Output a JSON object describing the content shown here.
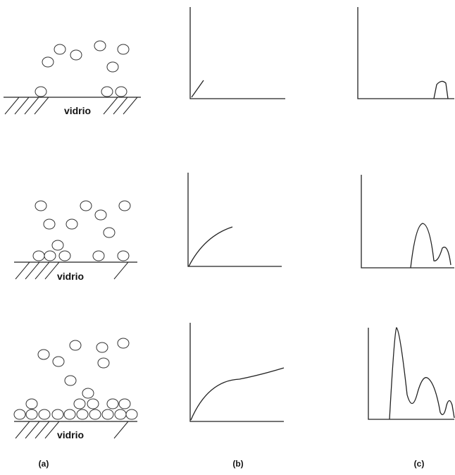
{
  "rows": [
    {
      "substrate_label": "vidrio"
    },
    {
      "substrate_label": "vidrio"
    },
    {
      "substrate_label": "vidrio"
    }
  ],
  "column_labels": [
    "(a)",
    "(b)",
    "(c)"
  ]
}
